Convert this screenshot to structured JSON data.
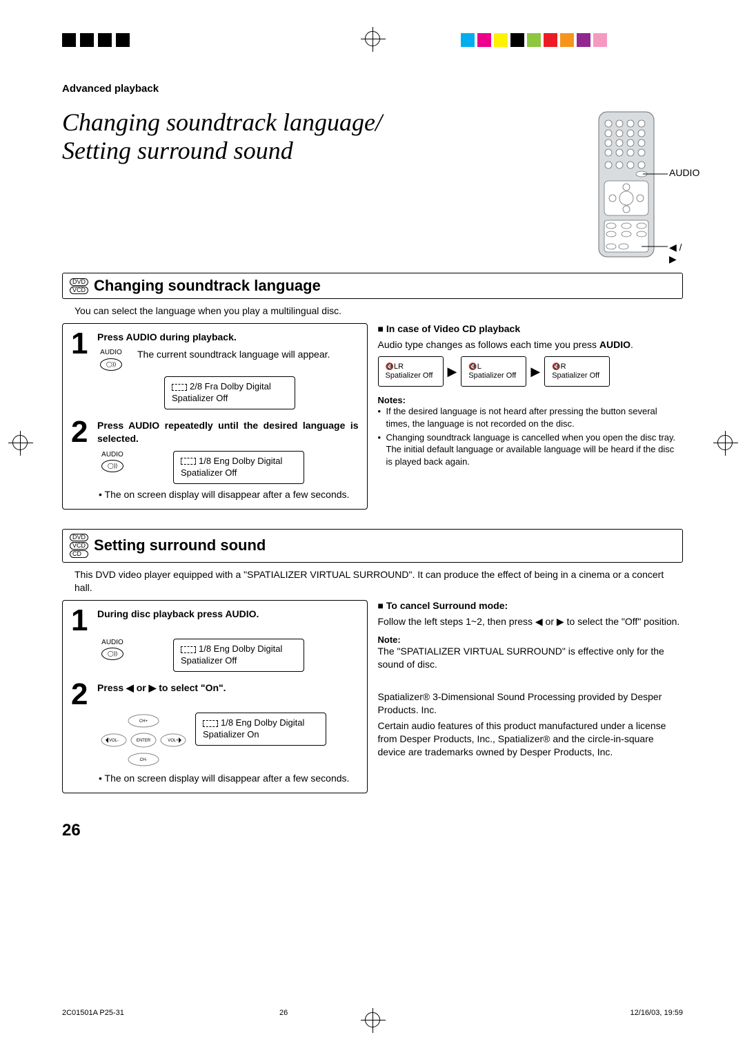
{
  "page": {
    "header_label": "Advanced playback",
    "main_title_line1": "Changing soundtrack language/",
    "main_title_line2": "Setting surround sound",
    "page_number": "26"
  },
  "color_bar": {
    "black_count": 4,
    "swatches": [
      "#00aeef",
      "#ec008c",
      "#fff200",
      "#000000",
      "#8dc63f",
      "#ed1c24",
      "#f7941d",
      "#92278f",
      "#f49ac1"
    ]
  },
  "remote": {
    "label_audio": "AUDIO",
    "label_arrows": "◀ / ▶",
    "fill": "#d9dcde",
    "stroke": "#6d6f71"
  },
  "section1": {
    "badge": [
      "DVD",
      "VCD"
    ],
    "title": "Changing soundtrack language",
    "intro": "You can select the language when you play a multilingual disc.",
    "step1": {
      "head": "Press AUDIO during playback.",
      "audio_label": "AUDIO",
      "body": "The current soundtrack language will appear.",
      "osd_line1": "2/8 Fra Dolby Digital",
      "osd_line2": "Spatializer Off"
    },
    "step2": {
      "head": "Press AUDIO repeatedly until the desired language is selected.",
      "audio_label": "AUDIO",
      "osd_line1": "1/8 Eng Dolby Digital",
      "osd_line2": "Spatializer Off",
      "bullet": "The on screen display will disappear after a few seconds."
    },
    "vcd": {
      "head": "In case of Video CD playback",
      "intro_pre": "Audio type changes as follows each time you press ",
      "intro_bold": "AUDIO",
      "intro_post": ".",
      "box1": {
        "ch": "LR",
        "sp": "Spatializer Off"
      },
      "box2": {
        "ch": "L",
        "sp": "Spatializer Off"
      },
      "box3": {
        "ch": "R",
        "sp": "Spatializer Off"
      }
    },
    "notes_head": "Notes:",
    "notes": [
      "If the desired language is not heard after pressing the button several times, the language is not recorded on the disc.",
      "Changing soundtrack language is cancelled when you open the disc tray. The initial default language or available language will be heard if the disc is played back again."
    ]
  },
  "section2": {
    "badge": [
      "DVD",
      "VCD",
      "CD"
    ],
    "title": "Setting surround sound",
    "intro": "This DVD video player equipped with a \"SPATIALIZER VIRTUAL SURROUND\". It can produce the effect of being in a cinema or a concert hall.",
    "step1": {
      "head": "During disc playback press AUDIO.",
      "audio_label": "AUDIO",
      "osd_line1": "1/8 Eng Dolby Digital",
      "osd_line2": "Spatializer Off"
    },
    "step2": {
      "head": "Press ◀ or ▶ to select \"On\".",
      "osd_line1": "1/8 Eng Dolby Digital",
      "osd_line2": "Spatializer On",
      "bullet": "The on screen display will disappear after a few seconds."
    },
    "cancel_head": "To cancel Surround mode",
    "cancel_body": "Follow the left steps 1~2, then press ◀ or ▶ to select the \"Off\" position.",
    "note_head": "Note:",
    "note_body": "The \"SPATIALIZER VIRTUAL SURROUND\" is effective only for the sound of disc.",
    "trademark1": "Spatializer® 3-Dimensional Sound Processing provided by Desper Products. Inc.",
    "trademark2": "Certain audio features of this product manufactured under a license from Desper Products, Inc., Spatializer® and the circle-in-square device are trademarks owned by Desper Products, Inc."
  },
  "dpad": {
    "ch_up": "CH+",
    "ch_down": "CH-",
    "vol_down": "VOL-",
    "vol_up": "VOL+",
    "enter": "ENTER"
  },
  "footer": {
    "left": "2C01501A P25-31",
    "mid": "26",
    "right": "12/16/03, 19:59"
  }
}
